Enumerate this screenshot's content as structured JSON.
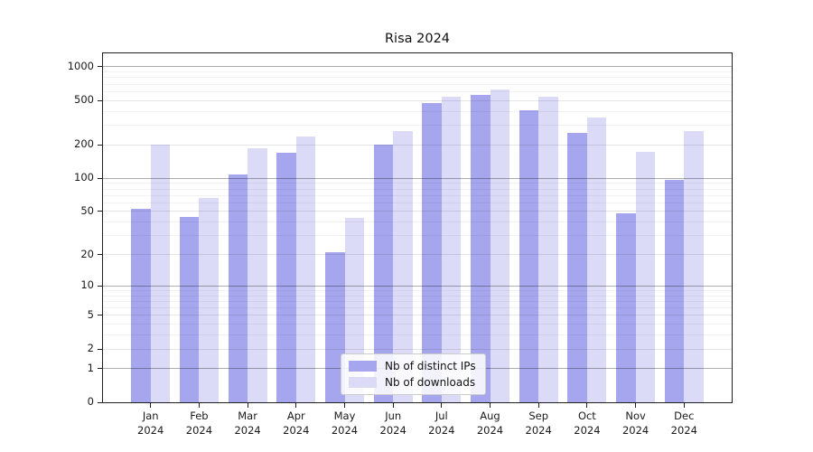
{
  "title": "Risa 2024",
  "chart_data": {
    "type": "bar",
    "title": "Risa 2024",
    "x_categories": [
      "Jan",
      "Feb",
      "Mar",
      "Apr",
      "May",
      "Jun",
      "Jul",
      "Aug",
      "Sep",
      "Oct",
      "Nov",
      "Dec"
    ],
    "x_year_label": "2024",
    "series": [
      {
        "name": "Nb of distinct IPs",
        "color": "#a6a6ee",
        "values": [
          52,
          44,
          108,
          167,
          21,
          200,
          466,
          554,
          405,
          252,
          48,
          95
        ]
      },
      {
        "name": "Nb of downloads",
        "color": "#dbdbf8",
        "values": [
          200,
          66,
          186,
          235,
          43,
          262,
          534,
          622,
          534,
          345,
          172,
          263
        ]
      }
    ],
    "yscale": "symlog-ln(1+x)",
    "ylim": [
      0,
      1220
    ],
    "y_ticks_labeled": [
      0,
      1,
      2,
      5,
      10,
      20,
      50,
      100,
      200,
      500,
      1000
    ],
    "y_ticks_major": [
      1,
      10,
      100,
      1000
    ],
    "y_gridlines_minor": [
      3,
      4,
      6,
      7,
      8,
      9,
      30,
      40,
      60,
      70,
      80,
      90,
      300,
      400,
      600,
      700,
      800,
      900
    ],
    "grid": true,
    "legend_position": "lower center"
  }
}
